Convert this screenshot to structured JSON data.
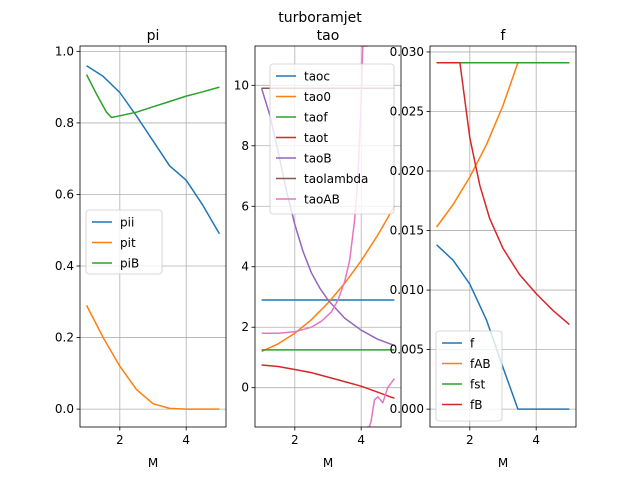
{
  "figure_title": "turboramjet",
  "chart_data": [
    {
      "type": "line",
      "title": "pi",
      "xlabel": "M",
      "xlim": [
        0.8,
        5.2
      ],
      "ylim": [
        -0.05,
        1.015
      ],
      "xticks": [
        2,
        4
      ],
      "yticks": [
        0.0,
        0.2,
        0.4,
        0.6,
        0.8,
        1.0
      ],
      "ytick_labels": [
        "0.0",
        "0.2",
        "0.4",
        "0.6",
        "0.8",
        "1.0"
      ],
      "grid": true,
      "legend": {
        "placement": "center-left",
        "entries": [
          "pii",
          "pit",
          "piB"
        ]
      },
      "series": [
        {
          "name": "pii",
          "color": "#1f77b4",
          "x": [
            1.0,
            1.5,
            2.0,
            2.5,
            3.0,
            3.5,
            4.0,
            4.5,
            5.0
          ],
          "y": [
            0.96,
            0.93,
            0.885,
            0.82,
            0.75,
            0.68,
            0.64,
            0.57,
            0.49
          ]
        },
        {
          "name": "pit",
          "color": "#ff7f0e",
          "x": [
            1.0,
            1.5,
            2.0,
            2.5,
            3.0,
            3.5,
            4.0,
            4.5,
            5.0
          ],
          "y": [
            0.29,
            0.2,
            0.12,
            0.055,
            0.015,
            0.002,
            0.0,
            0.0,
            0.0
          ]
        },
        {
          "name": "piB",
          "color": "#2ca02c",
          "x": [
            1.0,
            1.3,
            1.6,
            1.75,
            2.0,
            2.5,
            3.0,
            3.5,
            4.0,
            4.5,
            5.0
          ],
          "y": [
            0.935,
            0.88,
            0.83,
            0.815,
            0.82,
            0.83,
            0.845,
            0.86,
            0.875,
            0.887,
            0.9
          ]
        }
      ]
    },
    {
      "type": "line",
      "title": "tao",
      "xlabel": "M",
      "xlim": [
        0.8,
        5.2
      ],
      "ylim": [
        -1.3,
        11.3
      ],
      "xticks": [
        2,
        4
      ],
      "yticks": [
        0,
        2,
        4,
        6,
        8,
        10
      ],
      "ytick_labels": [
        "0",
        "2",
        "4",
        "6",
        "8",
        "10"
      ],
      "grid": true,
      "legend": {
        "placement": "upper-right",
        "entries": [
          "taoc",
          "tao0",
          "taof",
          "taot",
          "taoB",
          "taolambda",
          "taoAB"
        ]
      },
      "series": [
        {
          "name": "taoc",
          "color": "#1f77b4",
          "x": [
            1.0,
            5.0
          ],
          "y": [
            2.9,
            2.9
          ]
        },
        {
          "name": "tao0",
          "color": "#ff7f0e",
          "x": [
            1.0,
            1.5,
            2.0,
            2.5,
            3.0,
            3.5,
            4.0,
            4.5,
            5.0
          ],
          "y": [
            1.2,
            1.45,
            1.8,
            2.25,
            2.8,
            3.45,
            4.2,
            5.05,
            6.0
          ]
        },
        {
          "name": "taof",
          "color": "#2ca02c",
          "x": [
            1.0,
            5.0
          ],
          "y": [
            1.25,
            1.25
          ]
        },
        {
          "name": "taot",
          "color": "#d62728",
          "x": [
            1.0,
            1.5,
            2.0,
            2.5,
            3.0,
            3.5,
            4.0,
            4.5,
            5.0
          ],
          "y": [
            0.75,
            0.7,
            0.6,
            0.5,
            0.35,
            0.2,
            0.05,
            -0.15,
            -0.35
          ]
        },
        {
          "name": "taoB",
          "color": "#9467bd",
          "x": [
            1.0,
            1.25,
            1.5,
            1.75,
            2.0,
            2.25,
            2.5,
            2.75,
            3.0,
            3.5,
            4.0,
            4.5,
            5.0
          ],
          "y": [
            9.9,
            9.0,
            7.8,
            6.5,
            5.4,
            4.5,
            3.8,
            3.3,
            2.9,
            2.3,
            1.9,
            1.6,
            1.4
          ]
        },
        {
          "name": "taolambda",
          "color": "#8c564b",
          "x": [
            1.0,
            5.0
          ],
          "y": [
            9.9,
            9.9
          ]
        },
        {
          "name": "taoAB",
          "color": "#e377c2",
          "x": [
            1.0,
            1.5,
            2.0,
            2.5,
            2.8,
            3.1,
            3.3,
            3.5,
            3.65,
            3.8,
            3.9,
            4.0,
            4.05,
            4.1,
            4.15,
            4.2
          ],
          "y": [
            1.8,
            1.8,
            1.85,
            2.0,
            2.2,
            2.5,
            2.9,
            3.5,
            4.2,
            5.5,
            7.0,
            9.5,
            11.3,
            11.3,
            11.3,
            11.3
          ],
          "x2": [
            4.18,
            4.21,
            4.25,
            4.3,
            4.4,
            4.5,
            4.65,
            4.8,
            5.0
          ],
          "y2": [
            -1.3,
            -1.3,
            -1.3,
            -1.1,
            -0.4,
            -0.3,
            -0.5,
            0.0,
            0.3
          ]
        }
      ]
    },
    {
      "type": "line",
      "title": "f",
      "xlabel": "M",
      "xlim": [
        0.8,
        5.2
      ],
      "ylim": [
        -0.0015,
        0.0305
      ],
      "xticks": [
        2,
        4
      ],
      "yticks": [
        0.0,
        0.005,
        0.01,
        0.015,
        0.02,
        0.025,
        0.03
      ],
      "ytick_labels": [
        "0.000",
        "0.005",
        "0.010",
        "0.015",
        "0.020",
        "0.025",
        "0.030"
      ],
      "grid": true,
      "legend": {
        "placement": "lower-left",
        "entries": [
          "f",
          "fAB",
          "fst",
          "fB"
        ]
      },
      "series": [
        {
          "name": "f",
          "color": "#1f77b4",
          "x": [
            1.0,
            1.5,
            2.0,
            2.5,
            3.0,
            3.45,
            3.6,
            4.0,
            4.5,
            5.0
          ],
          "y": [
            0.0138,
            0.0125,
            0.0105,
            0.0075,
            0.0035,
            0.0,
            0.0,
            0.0,
            0.0,
            0.0
          ]
        },
        {
          "name": "fAB",
          "color": "#ff7f0e",
          "x": [
            1.0,
            1.5,
            2.0,
            2.5,
            3.0,
            3.45,
            3.6,
            4.0,
            4.5,
            5.0
          ],
          "y": [
            0.0153,
            0.0172,
            0.0195,
            0.0222,
            0.0255,
            0.0291,
            0.0291,
            0.0291,
            0.0291,
            0.0291
          ]
        },
        {
          "name": "fst",
          "color": "#2ca02c",
          "x": [
            1.0,
            5.0
          ],
          "y": [
            0.0291,
            0.0291
          ]
        },
        {
          "name": "fB",
          "color": "#d62728",
          "x": [
            1.0,
            1.7,
            1.8,
            2.0,
            2.3,
            2.6,
            3.0,
            3.5,
            4.0,
            4.5,
            5.0
          ],
          "y": [
            0.0291,
            0.0291,
            0.027,
            0.0228,
            0.0188,
            0.016,
            0.0135,
            0.0113,
            0.0097,
            0.0083,
            0.0071
          ]
        }
      ]
    }
  ]
}
